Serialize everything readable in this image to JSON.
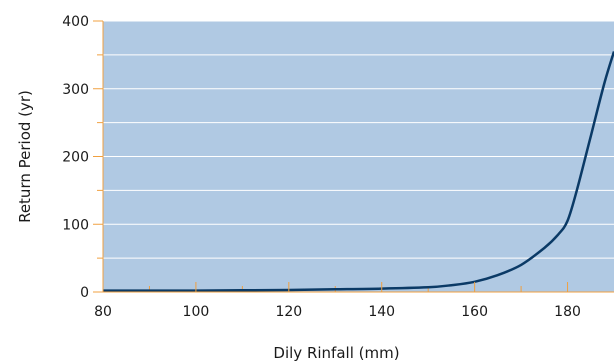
{
  "chart_data": {
    "type": "line",
    "xlabel": "Dily Rinfall (mm)",
    "ylabel": "Return Period (yr)",
    "xlim": [
      80,
      190
    ],
    "ylim": [
      0,
      400
    ],
    "x_ticks": [
      80,
      100,
      120,
      140,
      160,
      180
    ],
    "y_ticks": [
      0,
      100,
      200,
      300,
      400
    ],
    "x_tick_labels": [
      "80",
      "100",
      "120",
      "140",
      "160",
      "180"
    ],
    "y_tick_labels": [
      "0",
      "100",
      "200",
      "300",
      "400"
    ],
    "grid": "horizontal",
    "series": [
      {
        "x": [
          80,
          90,
          100,
          110,
          120,
          130,
          140,
          150,
          155,
          160,
          165,
          170,
          175,
          178,
          180,
          182,
          185,
          188,
          190
        ],
        "values": [
          2,
          2,
          2,
          2.5,
          3,
          4,
          5,
          7,
          10,
          15,
          25,
          40,
          65,
          85,
          105,
          150,
          230,
          310,
          355
        ]
      }
    ],
    "colors": {
      "plot_background": "#b0c9e3",
      "line": "#0b3a66",
      "gridline": "#ffffff",
      "tick_mark": "#f0a040",
      "axis": "#222222"
    }
  }
}
